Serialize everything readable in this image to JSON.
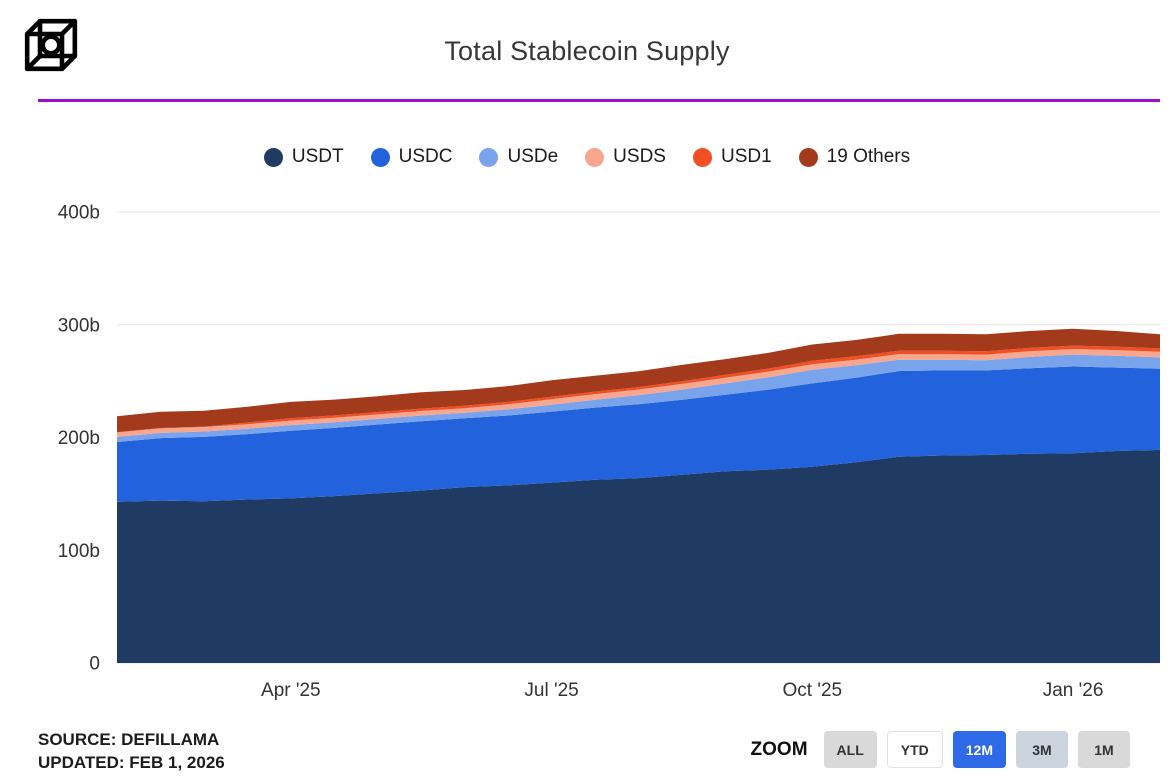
{
  "header": {
    "title": "Total Stablecoin Supply"
  },
  "divider_color": "#9a0dd4",
  "footer": {
    "source": "SOURCE: DEFILLAMA",
    "updated": "UPDATED: FEB 1, 2026",
    "zoom_label": "ZOOM",
    "zoom_active_color": "#2e6ae8",
    "zoom_buttons": [
      {
        "label": "ALL",
        "active": false
      },
      {
        "label": "YTD",
        "active": false
      },
      {
        "label": "12M",
        "active": true
      },
      {
        "label": "3M",
        "active": false
      },
      {
        "label": "1M",
        "active": false
      }
    ]
  },
  "chart_data": {
    "type": "area",
    "stacked": true,
    "title": "Total Stablecoin Supply",
    "y_unit": "billions (b)",
    "x_unit": "months since Feb 2025",
    "x_start": "Feb 2025",
    "x_end": "Feb 2026",
    "grid": true,
    "legend_position": "top",
    "ylim": [
      0,
      400
    ],
    "x": [
      0,
      0.5,
      1,
      1.5,
      2,
      2.5,
      3,
      3.5,
      4,
      4.5,
      5,
      5.5,
      6,
      6.5,
      7,
      7.5,
      8,
      8.5,
      9,
      9.5,
      10,
      10.5,
      11,
      11.5,
      12
    ],
    "series": [
      {
        "name": "USDT",
        "color": "#1f3b63",
        "values": [
          143,
          144,
          143.5,
          145,
          146,
          148,
          150.5,
          153,
          156,
          157.5,
          160,
          162.5,
          164,
          167,
          170,
          171.5,
          174,
          178,
          183,
          184,
          184.5,
          185.5,
          186,
          188,
          189
        ]
      },
      {
        "name": "USDC",
        "color": "#2262dd",
        "values": [
          53,
          55.5,
          57,
          58,
          60,
          60.5,
          61,
          61.5,
          61,
          62,
          63,
          64,
          65.5,
          66.5,
          68,
          71,
          74,
          75,
          76,
          75.5,
          75,
          76,
          77,
          74,
          72
        ]
      },
      {
        "name": "USDe",
        "color": "#79a3ea",
        "values": [
          4.5,
          4.6,
          4.8,
          4.8,
          5,
          5,
          5,
          5,
          5,
          5.5,
          6,
          7,
          8,
          9,
          10,
          11,
          12,
          11,
          10,
          9.5,
          9,
          10,
          10.5,
          10.5,
          10
        ]
      },
      {
        "name": "USDS",
        "color": "#f8a78f",
        "values": [
          4,
          4,
          4,
          4,
          4,
          4,
          4,
          4,
          4,
          4.5,
          5,
          5,
          5,
          5,
          5,
          5,
          5,
          5,
          5,
          5,
          5,
          5,
          5,
          5,
          5
        ]
      },
      {
        "name": "USD1",
        "color": "#f14f24",
        "values": [
          0.3,
          0.3,
          0.4,
          1.5,
          2.1,
          2.1,
          2.1,
          2.1,
          2.1,
          2.1,
          2.2,
          2.2,
          2.2,
          2.4,
          2.5,
          2.7,
          3,
          3,
          3,
          3,
          3,
          3,
          3,
          3,
          3
        ]
      },
      {
        "name": "19 Others",
        "color": "#a43a1c",
        "values": [
          14,
          14.5,
          14,
          14,
          14.5,
          14,
          14,
          14.5,
          14,
          14,
          14.5,
          14,
          14,
          14.5,
          14,
          14,
          14.5,
          14.5,
          15,
          15,
          15,
          15,
          15,
          14,
          12.5
        ]
      }
    ],
    "y_ticks": [
      {
        "value": 0,
        "label": "0"
      },
      {
        "value": 100,
        "label": "100b"
      },
      {
        "value": 200,
        "label": "200b"
      },
      {
        "value": 300,
        "label": "300b"
      },
      {
        "value": 400,
        "label": "400b"
      }
    ],
    "x_ticks": [
      {
        "x": 2,
        "label": "Apr '25"
      },
      {
        "x": 5,
        "label": "Jul '25"
      },
      {
        "x": 8,
        "label": "Oct '25"
      },
      {
        "x": 11,
        "label": "Jan '26"
      }
    ]
  }
}
